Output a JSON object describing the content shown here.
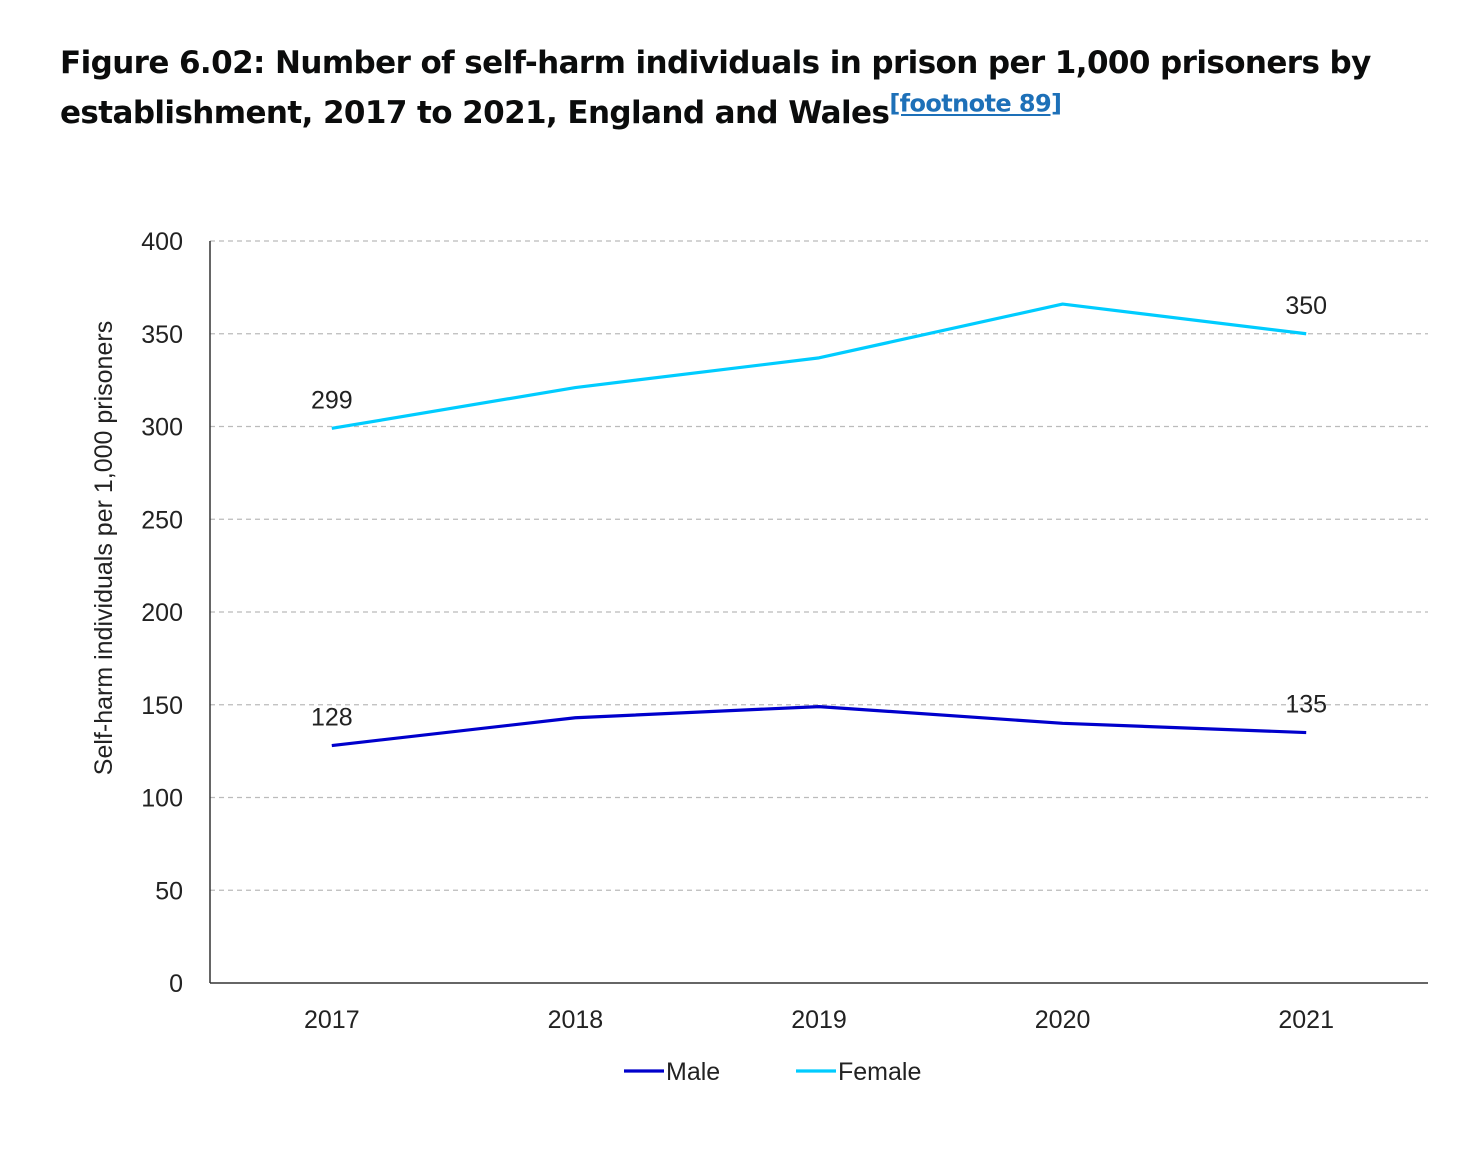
{
  "title": {
    "text": "Figure 6.02: Number of self-harm individuals in prison per 1,000 prisoners by establishment, 2017 to 2021, England and Wales",
    "footnote_link": "[footnote 89]"
  },
  "chart_data": {
    "type": "line",
    "title": "",
    "xlabel": "",
    "ylabel": "Self-harm individuals per 1,000 prisoners",
    "categories": [
      "2017",
      "2018",
      "2019",
      "2020",
      "2021"
    ],
    "ylim": [
      0,
      400
    ],
    "yticks": [
      "0",
      "50",
      "100",
      "150",
      "200",
      "250",
      "300",
      "350",
      "400"
    ],
    "grid": "horizontal dashed",
    "legend": "bottom",
    "series": [
      {
        "name": "Male",
        "color": "#0000cc",
        "values": [
          128,
          143,
          149,
          140,
          135
        ],
        "labels": {
          "0": "128",
          "4": "135"
        }
      },
      {
        "name": "Female",
        "color": "#00ccff",
        "values": [
          299,
          321,
          337,
          366,
          350
        ],
        "labels": {
          "0": "299",
          "4": "350"
        }
      }
    ]
  }
}
